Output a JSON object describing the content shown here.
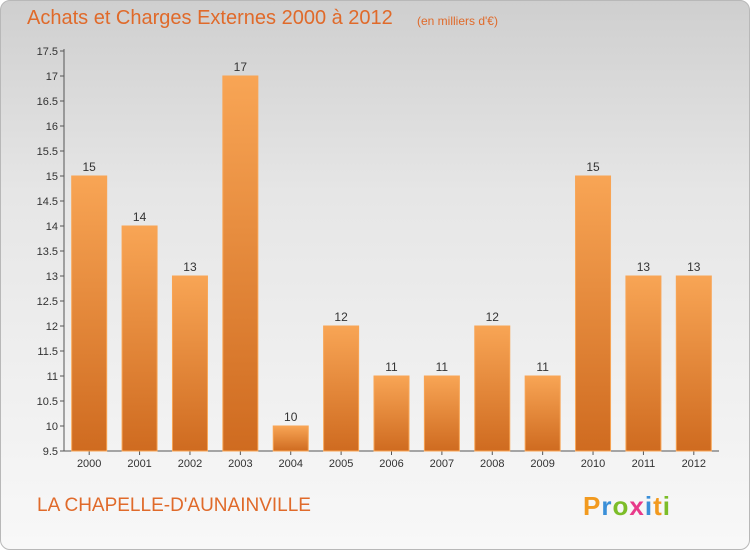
{
  "header": {
    "title": "Achats et Charges Externes 2000 à 2012",
    "subtitle": "(en milliers d'€)"
  },
  "footer": {
    "commune": "LA CHAPELLE-D'AUNAINVILLE",
    "logo_letters": [
      "P",
      "r",
      "o",
      "x",
      "i",
      "t",
      "i"
    ],
    "logo_colors": [
      "#f29a1f",
      "#3a8fd8",
      "#7cbd28",
      "#e83a8a",
      "#3a8fd8",
      "#f29a1f",
      "#7cbd28"
    ]
  },
  "colors": {
    "bar": "#f0913d",
    "bar_light": "#f8a555",
    "bar_dark": "#cf6b20",
    "text": "#e06a2a"
  },
  "chart_data": {
    "type": "bar",
    "categories": [
      "2000",
      "2001",
      "2002",
      "2003",
      "2004",
      "2005",
      "2006",
      "2007",
      "2008",
      "2009",
      "2010",
      "2011",
      "2012"
    ],
    "values": [
      15,
      14,
      13,
      17,
      10,
      12,
      11,
      11,
      12,
      11,
      15,
      13,
      13
    ],
    "value_labels": [
      "15",
      "14",
      "13",
      "17",
      "10",
      "12",
      "11",
      "11",
      "12",
      "11",
      "15",
      "13",
      "13"
    ],
    "yticks": [
      "9.5",
      "10",
      "10.5",
      "11",
      "11.5",
      "12",
      "12.5",
      "13",
      "13.5",
      "14",
      "14.5",
      "15",
      "15.5",
      "16",
      "16.5",
      "17",
      "17.5"
    ],
    "ylim": [
      9.5,
      17.5
    ],
    "grid": false,
    "xlabel": "",
    "ylabel": ""
  }
}
